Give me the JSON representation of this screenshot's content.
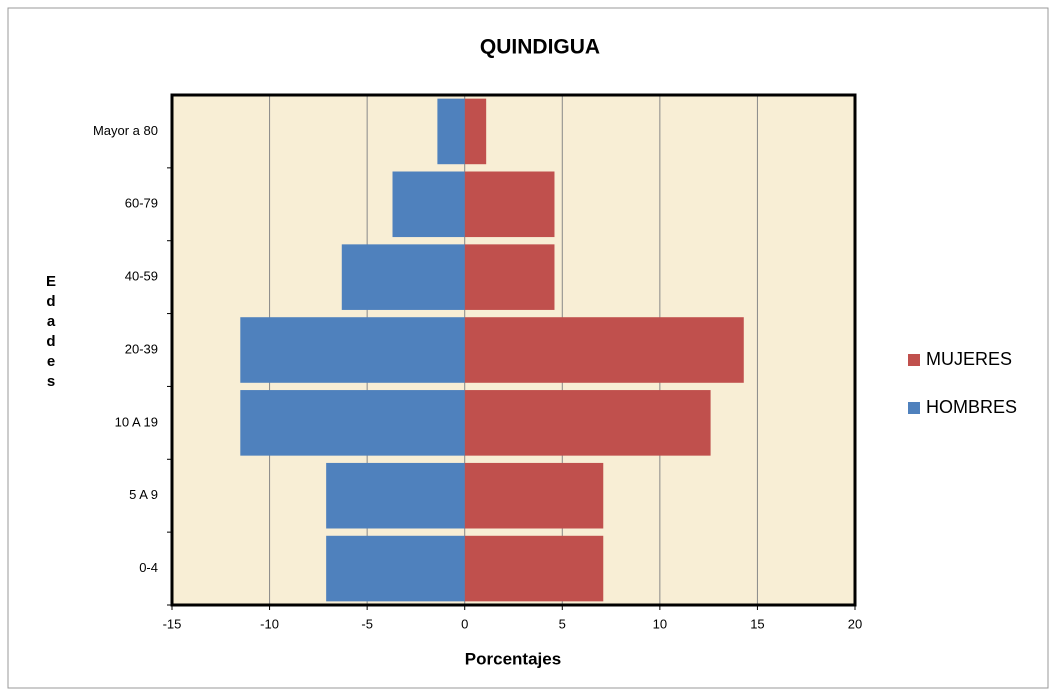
{
  "chart_data": {
    "type": "bar",
    "orientation": "horizontal",
    "title": "QUINDIGUA",
    "xlabel": "Porcentajes",
    "ylabel": "Edades",
    "categories": [
      "0-4",
      "5 A 9",
      "10 A 19",
      "20-39",
      "40-59",
      "60-79",
      "Mayor a 80"
    ],
    "series": [
      {
        "name": "MUJERES",
        "color": "#c0504d",
        "values": [
          7.1,
          7.1,
          12.6,
          14.3,
          4.6,
          4.6,
          1.1
        ]
      },
      {
        "name": "HOMBRES",
        "color": "#4f81bd",
        "values": [
          -7.1,
          -7.1,
          -11.5,
          -11.5,
          -6.3,
          -3.7,
          -1.4
        ]
      }
    ],
    "xlim": [
      -15,
      20
    ],
    "xticks": [
      -15,
      -10,
      -5,
      0,
      5,
      10,
      15,
      20
    ],
    "grid": true,
    "legend": "right"
  }
}
